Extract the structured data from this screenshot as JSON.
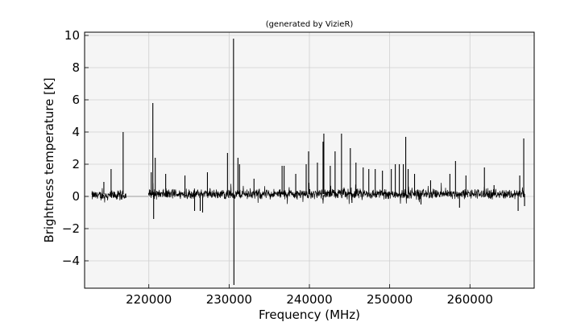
{
  "chart_data": {
    "type": "line",
    "title": "(generated by VizieR)",
    "xlabel": "Frequency (MHz)",
    "ylabel": "Brightness temperature [K]",
    "xlim": [
      212000,
      268000
    ],
    "ylim": [
      -5.7,
      10.2
    ],
    "xticks": [
      220000,
      230000,
      240000,
      250000,
      260000
    ],
    "yticks": [
      -4,
      -2,
      0,
      2,
      4,
      6,
      8,
      10
    ],
    "xtick_labels": [
      "220000",
      "230000",
      "240000",
      "250000",
      "260000"
    ],
    "ytick_labels": [
      "−4",
      "−2",
      "0",
      "2",
      "4",
      "6",
      "8",
      "10"
    ],
    "grid": true,
    "background": "#f5f5f5",
    "line_color": "#000000",
    "gap_color": "#9a9a9a",
    "series": [
      {
        "segments": [
          {
            "x_start": 212900,
            "x_end": 217200,
            "noise": 0.45,
            "baseline": 0.05
          },
          {
            "x_start": 219950,
            "x_end": 266800,
            "noise": 0.45,
            "baseline": 0.15
          }
        ],
        "gap_line": {
          "x_start": 217200,
          "x_end": 219950,
          "y": 0.0
        },
        "peaks": [
          {
            "x": 214400,
            "y": 0.9
          },
          {
            "x": 215300,
            "y": 1.7
          },
          {
            "x": 216800,
            "y": 4.0
          },
          {
            "x": 220300,
            "y": 1.5
          },
          {
            "x": 220500,
            "y": 5.8
          },
          {
            "x": 220600,
            "y": -1.4
          },
          {
            "x": 220800,
            "y": 2.4
          },
          {
            "x": 222100,
            "y": 1.4
          },
          {
            "x": 224500,
            "y": 1.3
          },
          {
            "x": 225700,
            "y": -0.9
          },
          {
            "x": 226400,
            "y": -0.9
          },
          {
            "x": 226700,
            "y": -1.0
          },
          {
            "x": 227300,
            "y": 1.5
          },
          {
            "x": 229800,
            "y": 2.7
          },
          {
            "x": 230550,
            "y": 9.8
          },
          {
            "x": 230600,
            "y": -5.5
          },
          {
            "x": 231100,
            "y": 2.4
          },
          {
            "x": 231300,
            "y": 2.0
          },
          {
            "x": 233100,
            "y": 1.1
          },
          {
            "x": 236600,
            "y": 1.9
          },
          {
            "x": 236850,
            "y": 1.9
          },
          {
            "x": 238300,
            "y": 1.4
          },
          {
            "x": 239600,
            "y": 2.0
          },
          {
            "x": 239900,
            "y": 2.8
          },
          {
            "x": 241000,
            "y": 2.1
          },
          {
            "x": 241700,
            "y": 3.4
          },
          {
            "x": 241800,
            "y": 3.9
          },
          {
            "x": 242600,
            "y": 1.9
          },
          {
            "x": 243200,
            "y": 2.8
          },
          {
            "x": 244000,
            "y": 3.9
          },
          {
            "x": 245100,
            "y": 3.0
          },
          {
            "x": 245300,
            "y": -0.4
          },
          {
            "x": 245800,
            "y": 2.1
          },
          {
            "x": 246700,
            "y": 1.8
          },
          {
            "x": 247400,
            "y": 1.7
          },
          {
            "x": 248200,
            "y": 1.7
          },
          {
            "x": 249100,
            "y": 1.6
          },
          {
            "x": 250200,
            "y": 1.7
          },
          {
            "x": 250700,
            "y": 2.0
          },
          {
            "x": 251200,
            "y": 2.0
          },
          {
            "x": 251700,
            "y": 2.0
          },
          {
            "x": 252000,
            "y": 3.7
          },
          {
            "x": 252300,
            "y": 1.7
          },
          {
            "x": 253100,
            "y": 1.4
          },
          {
            "x": 253900,
            "y": -0.5
          },
          {
            "x": 255100,
            "y": 1.0
          },
          {
            "x": 257500,
            "y": 1.4
          },
          {
            "x": 258200,
            "y": 2.2
          },
          {
            "x": 258700,
            "y": -0.7
          },
          {
            "x": 259500,
            "y": 1.3
          },
          {
            "x": 261800,
            "y": 1.8
          },
          {
            "x": 263000,
            "y": 0.7
          },
          {
            "x": 266000,
            "y": -0.9
          },
          {
            "x": 266200,
            "y": 1.3
          },
          {
            "x": 266700,
            "y": 3.6
          },
          {
            "x": 266800,
            "y": -0.6
          }
        ]
      }
    ]
  }
}
